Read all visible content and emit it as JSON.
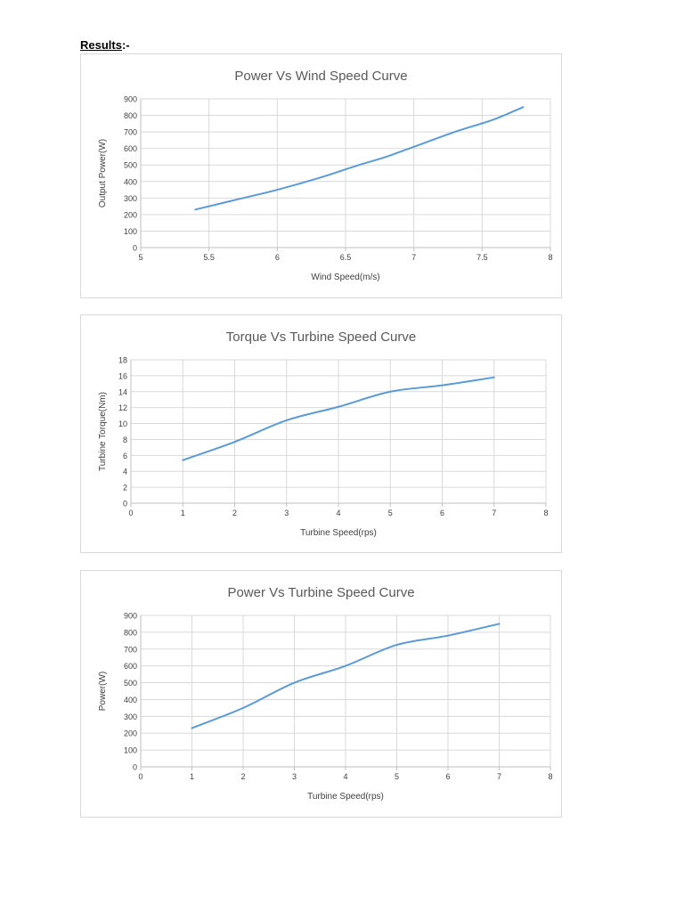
{
  "heading": {
    "label": "Results",
    "suffix": ":-"
  },
  "chart_data": [
    {
      "type": "line",
      "title": "Power Vs Wind Speed Curve",
      "xlabel": "Wind Speed(m/s)",
      "ylabel": "Output Power(W)",
      "xlim": [
        5,
        8
      ],
      "ylim": [
        0,
        900
      ],
      "xticks": [
        5,
        5.5,
        6,
        6.5,
        7,
        7.5,
        8
      ],
      "xtick_labels": [
        "5",
        "5.5",
        "6",
        "6.5",
        "7",
        "7.5",
        "8"
      ],
      "yticks": [
        0,
        100,
        200,
        300,
        400,
        500,
        600,
        700,
        800,
        900
      ],
      "ytick_labels": [
        "0",
        "100",
        "200",
        "300",
        "400",
        "500",
        "600",
        "700",
        "800",
        "900"
      ],
      "grid": true,
      "legend": "none",
      "color": "#5b9bd5",
      "series": [
        {
          "x": [
            5.4,
            5.7,
            6.0,
            6.3,
            6.6,
            6.8,
            7.0,
            7.3,
            7.6,
            7.8
          ],
          "y": [
            230,
            290,
            350,
            420,
            500,
            550,
            610,
            700,
            780,
            850
          ]
        }
      ]
    },
    {
      "type": "line",
      "title": "Torque Vs Turbine Speed Curve",
      "xlabel": "Turbine Speed(rps)",
      "ylabel": "Turbine Torque(Nm)",
      "xlim": [
        0,
        8
      ],
      "ylim": [
        0,
        18
      ],
      "xticks": [
        0,
        1,
        2,
        3,
        4,
        5,
        6,
        7,
        8
      ],
      "xtick_labels": [
        "0",
        "1",
        "2",
        "3",
        "4",
        "5",
        "6",
        "7",
        "8"
      ],
      "yticks": [
        0,
        2,
        4,
        6,
        8,
        10,
        12,
        14,
        16,
        18
      ],
      "ytick_labels": [
        "0",
        "2",
        "4",
        "6",
        "8",
        "10",
        "12",
        "14",
        "16",
        "18"
      ],
      "grid": true,
      "legend": "none",
      "color": "#5b9bd5",
      "series": [
        {
          "x": [
            1,
            2,
            3,
            4,
            5,
            6,
            7
          ],
          "y": [
            5.4,
            7.7,
            10.4,
            12.1,
            14.0,
            14.8,
            15.8
          ]
        }
      ]
    },
    {
      "type": "line",
      "title": "Power Vs Turbine Speed Curve",
      "xlabel": "Turbine Speed(rps)",
      "ylabel": "Power(W)",
      "xlim": [
        0,
        8
      ],
      "ylim": [
        0,
        900
      ],
      "xticks": [
        0,
        1,
        2,
        3,
        4,
        5,
        6,
        7,
        8
      ],
      "xtick_labels": [
        "0",
        "1",
        "2",
        "3",
        "4",
        "5",
        "6",
        "7",
        "8"
      ],
      "yticks": [
        0,
        100,
        200,
        300,
        400,
        500,
        600,
        700,
        800,
        900
      ],
      "ytick_labels": [
        "0",
        "100",
        "200",
        "300",
        "400",
        "500",
        "600",
        "700",
        "800",
        "900"
      ],
      "grid": true,
      "legend": "none",
      "color": "#5b9bd5",
      "series": [
        {
          "x": [
            1,
            2,
            3,
            4,
            5,
            6,
            7
          ],
          "y": [
            230,
            350,
            500,
            600,
            725,
            780,
            850
          ]
        }
      ]
    }
  ]
}
